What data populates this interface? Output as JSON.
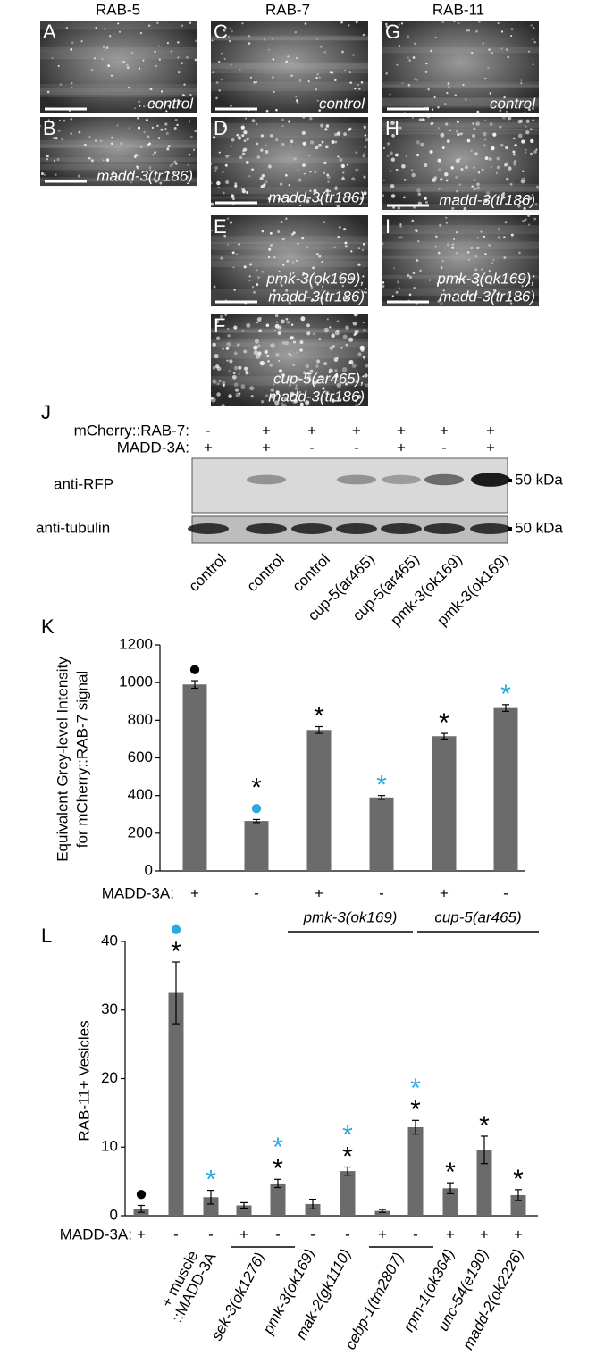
{
  "panels": {
    "headers": [
      "RAB-5",
      "RAB-7",
      "RAB-11"
    ],
    "images": [
      {
        "letter": "A",
        "label": [
          "control"
        ]
      },
      {
        "letter": "B",
        "label": [
          "madd-3(tr186)"
        ]
      },
      {
        "letter": "C",
        "label": [
          "control"
        ]
      },
      {
        "letter": "D",
        "label": [
          "madd-3(tr186)"
        ]
      },
      {
        "letter": "E",
        "label": [
          "pmk-3(ok169);",
          "madd-3(tr186)"
        ]
      },
      {
        "letter": "F",
        "label": [
          "cup-5(ar465);",
          "madd-3(tr186)"
        ]
      },
      {
        "letter": "G",
        "label": [
          "control"
        ]
      },
      {
        "letter": "H",
        "label": [
          "madd-3(tr186)"
        ]
      },
      {
        "letter": "I",
        "label": [
          "pmk-3(ok169);",
          "madd-3(tr186)"
        ]
      }
    ]
  },
  "blot": {
    "letter": "J",
    "rows": [
      {
        "label": "mCherry::RAB-7:",
        "signs": [
          "-",
          "+",
          "+",
          "+",
          "+",
          "+",
          "+"
        ]
      },
      {
        "label": "MADD-3A:",
        "signs": [
          "+",
          "+",
          "-",
          "-",
          "+",
          "-",
          "+"
        ]
      }
    ],
    "probes": [
      "anti-RFP",
      "anti-tubulin"
    ],
    "marker": "50 kDa",
    "lanes": [
      "control",
      "control",
      "control",
      "cup-5(ar465)",
      "cup-5(ar465)",
      "pmk-3(ok169)",
      "pmk-3(ok169)"
    ]
  },
  "chart_data": [
    {
      "type": "bar",
      "panel": "K",
      "y_label": [
        "Equivalent Grey-level Intensity",
        "for mCherry::RAB-7 signal"
      ],
      "x_label": "MADD-3A:",
      "categories": [
        "+",
        "-",
        "+",
        "-",
        "+",
        "-"
      ],
      "values": [
        990,
        265,
        748,
        390,
        715,
        865
      ],
      "errors": [
        20,
        8,
        18,
        10,
        15,
        18
      ],
      "color": "#6b6b6b",
      "ylim": [
        0,
        1200
      ],
      "yticks": [
        0,
        200,
        400,
        600,
        800,
        1000,
        1200
      ],
      "markers": [
        [
          {
            "symbol": "●",
            "color": "#000000"
          }
        ],
        [
          {
            "symbol": "●",
            "color": "#29abe2"
          },
          {
            "symbol": "*",
            "color": "#000000"
          }
        ],
        [
          {
            "symbol": "*",
            "color": "#000000"
          }
        ],
        [
          {
            "symbol": "*",
            "color": "#29abe2"
          }
        ],
        [
          {
            "symbol": "*",
            "color": "#000000"
          }
        ],
        [
          {
            "symbol": "*",
            "color": "#29abe2"
          }
        ]
      ],
      "groups": [
        [
          "pmk-3(ok169)"
        ],
        [
          "cup-5(ar465)"
        ]
      ]
    },
    {
      "type": "bar",
      "panel": "L",
      "y_label": [
        "RAB-11+ Vesicles"
      ],
      "x_label": "MADD-3A:",
      "categories": [
        "+",
        "-",
        "-",
        "+",
        "-",
        "-",
        "-",
        "+",
        "-",
        "+",
        "+",
        "+"
      ],
      "values": [
        1.0,
        32.5,
        2.7,
        1.5,
        4.7,
        1.7,
        6.5,
        0.7,
        12.9,
        4.0,
        9.6,
        3.0
      ],
      "errors": [
        0.5,
        4.5,
        1.0,
        0.4,
        0.6,
        0.7,
        0.6,
        0.2,
        1.0,
        0.8,
        2.0,
        0.8
      ],
      "color": "#6b6b6b",
      "ylim": [
        0,
        40
      ],
      "yticks": [
        0,
        10,
        20,
        30,
        40
      ],
      "markers": [
        [
          {
            "symbol": "●",
            "color": "#000000"
          }
        ],
        [
          {
            "symbol": "*",
            "color": "#000000"
          },
          {
            "symbol": "●",
            "color": "#29abe2"
          }
        ],
        [
          {
            "symbol": "*",
            "color": "#29abe2"
          }
        ],
        [],
        [
          {
            "symbol": "*",
            "color": "#000000"
          },
          {
            "symbol": "*",
            "color": "#29abe2"
          }
        ],
        [],
        [
          {
            "symbol": "*",
            "color": "#000000"
          },
          {
            "symbol": "*",
            "color": "#29abe2"
          }
        ],
        [],
        [
          {
            "symbol": "*",
            "color": "#000000"
          },
          {
            "symbol": "*",
            "color": "#29abe2"
          }
        ],
        [
          {
            "symbol": "*",
            "color": "#000000"
          }
        ],
        [
          {
            "symbol": "*",
            "color": "#000000"
          }
        ],
        [
          {
            "symbol": "*",
            "color": "#000000"
          }
        ]
      ],
      "groups": [
        [
          "+ muscle",
          "::MADD-3A"
        ],
        [
          "sek-3(ok1276)"
        ],
        [
          "pmk-3(ok169)"
        ],
        [
          "mak-2(gk1110)"
        ],
        [
          "cebp-1(tm2807)"
        ],
        [
          "rpm-1(ok364)"
        ],
        [
          "unc-54(e190)"
        ],
        [
          "madd-2(ok2226)"
        ]
      ]
    }
  ]
}
